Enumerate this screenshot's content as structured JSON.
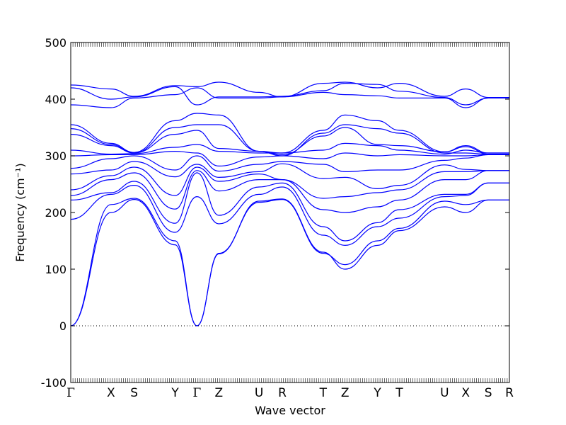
{
  "chart_data": {
    "type": "line",
    "title": "",
    "xlabel": "Wave vector",
    "ylabel": "Frequency (cm⁻¹)",
    "ylim": [
      -100,
      500
    ],
    "yticks": [
      -100,
      0,
      100,
      200,
      300,
      400,
      500
    ],
    "zero_line": true,
    "grid": false,
    "legend": "none",
    "color": "#0000ff",
    "kpath": {
      "labels": [
        "Γ",
        "X",
        "S",
        "Y",
        "Γ",
        "Z",
        "U",
        "R",
        "T",
        "Z",
        "Y",
        "T",
        "U",
        "X",
        "S",
        "R"
      ],
      "x": [
        0.0,
        0.57,
        0.9,
        1.48,
        1.79,
        2.1,
        2.67,
        3.0,
        3.58,
        3.89,
        4.35,
        4.66,
        5.3,
        5.6,
        5.92,
        6.22
      ]
    },
    "bands": [
      [
        0,
        200,
        223,
        143,
        0,
        127,
        220,
        224,
        130,
        100,
        142,
        168,
        210,
        200,
        222,
        222
      ],
      [
        0,
        214,
        225,
        150,
        0,
        128,
        218,
        223,
        128,
        108,
        150,
        172,
        220,
        214,
        222,
        222
      ],
      [
        188,
        232,
        248,
        165,
        228,
        180,
        232,
        245,
        160,
        142,
        175,
        190,
        228,
        230,
        252,
        252
      ],
      [
        222,
        235,
        255,
        181,
        270,
        195,
        245,
        252,
        175,
        150,
        182,
        205,
        232,
        232,
        252,
        252
      ],
      [
        230,
        258,
        270,
        206,
        274,
        238,
        258,
        258,
        205,
        200,
        210,
        222,
        258,
        258,
        274,
        274
      ],
      [
        240,
        265,
        280,
        230,
        280,
        255,
        268,
        258,
        225,
        228,
        235,
        240,
        272,
        272,
        274,
        274
      ],
      [
        268,
        275,
        290,
        263,
        285,
        262,
        272,
        286,
        260,
        262,
        242,
        248,
        284,
        276,
        274,
        274
      ],
      [
        278,
        295,
        300,
        275,
        300,
        273,
        285,
        290,
        285,
        272,
        275,
        275,
        292,
        296,
        302,
        302
      ],
      [
        300,
        302,
        302,
        308,
        305,
        282,
        298,
        300,
        295,
        305,
        300,
        302,
        300,
        300,
        302,
        302
      ],
      [
        310,
        303,
        304,
        315,
        320,
        308,
        305,
        305,
        310,
        322,
        318,
        310,
        303,
        310,
        305,
        305
      ],
      [
        338,
        318,
        305,
        338,
        345,
        313,
        308,
        302,
        335,
        350,
        320,
        318,
        307,
        318,
        305,
        305
      ],
      [
        348,
        320,
        305,
        350,
        355,
        355,
        308,
        300,
        340,
        355,
        348,
        340,
        305,
        305,
        303,
        303
      ],
      [
        355,
        322,
        306,
        362,
        375,
        372,
        308,
        305,
        345,
        372,
        362,
        345,
        307,
        316,
        303,
        303
      ],
      [
        390,
        385,
        402,
        408,
        420,
        402,
        402,
        404,
        412,
        408,
        406,
        402,
        402,
        385,
        402,
        402
      ],
      [
        420,
        400,
        404,
        422,
        390,
        404,
        404,
        405,
        415,
        428,
        426,
        414,
        403,
        390,
        402,
        402
      ],
      [
        425,
        418,
        405,
        424,
        422,
        430,
        412,
        404,
        428,
        430,
        420,
        428,
        405,
        418,
        403,
        403
      ]
    ]
  }
}
